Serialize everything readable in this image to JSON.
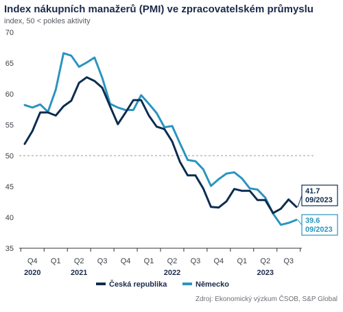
{
  "title": "Index nákupních manažerů (PMI) ve zpracovatelském průmyslu",
  "subtitle": "index, 50 < pokles aktivity",
  "source": "Zdroj: Ekonomický výzkum ČSOB, S&P Global",
  "colors": {
    "cz": "#0d2c50",
    "de": "#2a94bf",
    "grid": "#999999"
  },
  "chart_data": {
    "type": "line",
    "ylim": [
      35,
      70
    ],
    "yticks": [
      35,
      40,
      45,
      50,
      55,
      60,
      65,
      70
    ],
    "reference_line": 50,
    "quarter_ticks": [
      "Q4",
      "Q1",
      "Q2",
      "Q3",
      "Q4",
      "Q1",
      "Q2",
      "Q3",
      "Q4",
      "Q1",
      "Q2",
      "Q3"
    ],
    "years": [
      {
        "label": "2020",
        "quarter_index": 0
      },
      {
        "label": "2021",
        "quarter_index": 2
      },
      {
        "label": "2022",
        "quarter_index": 6
      },
      {
        "label": "2023",
        "quarter_index": 10
      }
    ],
    "x": [
      "2020-10",
      "2020-11",
      "2020-12",
      "2021-01",
      "2021-02",
      "2021-03",
      "2021-04",
      "2021-05",
      "2021-06",
      "2021-07",
      "2021-08",
      "2021-09",
      "2021-10",
      "2021-11",
      "2021-12",
      "2022-01",
      "2022-02",
      "2022-03",
      "2022-04",
      "2022-05",
      "2022-06",
      "2022-07",
      "2022-08",
      "2022-09",
      "2022-10",
      "2022-11",
      "2022-12",
      "2023-01",
      "2023-02",
      "2023-03",
      "2023-04",
      "2023-05",
      "2023-06",
      "2023-07",
      "2023-08",
      "2023-09"
    ],
    "series": [
      {
        "name": "Česká republika",
        "key": "cz",
        "values": [
          51.9,
          54.0,
          57.0,
          57.0,
          56.5,
          58.0,
          58.9,
          61.8,
          62.7,
          62.1,
          61.0,
          58.0,
          55.1,
          57.0,
          59.0,
          59.0,
          56.5,
          54.7,
          54.3,
          52.3,
          49.0,
          46.8,
          46.8,
          44.7,
          41.7,
          41.6,
          42.6,
          44.6,
          44.3,
          44.3,
          42.8,
          42.8,
          40.7,
          41.4,
          42.9,
          41.7
        ]
      },
      {
        "name": "Německo",
        "key": "de",
        "values": [
          58.2,
          57.8,
          58.3,
          57.1,
          60.7,
          66.6,
          66.2,
          64.4,
          65.1,
          65.9,
          62.6,
          58.4,
          57.8,
          57.4,
          57.4,
          59.8,
          58.4,
          56.9,
          54.6,
          54.8,
          52.0,
          49.3,
          49.1,
          47.8,
          45.1,
          46.2,
          47.1,
          47.3,
          46.3,
          44.7,
          44.5,
          43.2,
          40.6,
          38.8,
          39.1,
          39.6
        ]
      }
    ],
    "callouts": [
      {
        "series": "cz",
        "value": "41.7",
        "date": "09/2023"
      },
      {
        "series": "de",
        "value": "39.6",
        "date": "09/2023"
      }
    ]
  }
}
